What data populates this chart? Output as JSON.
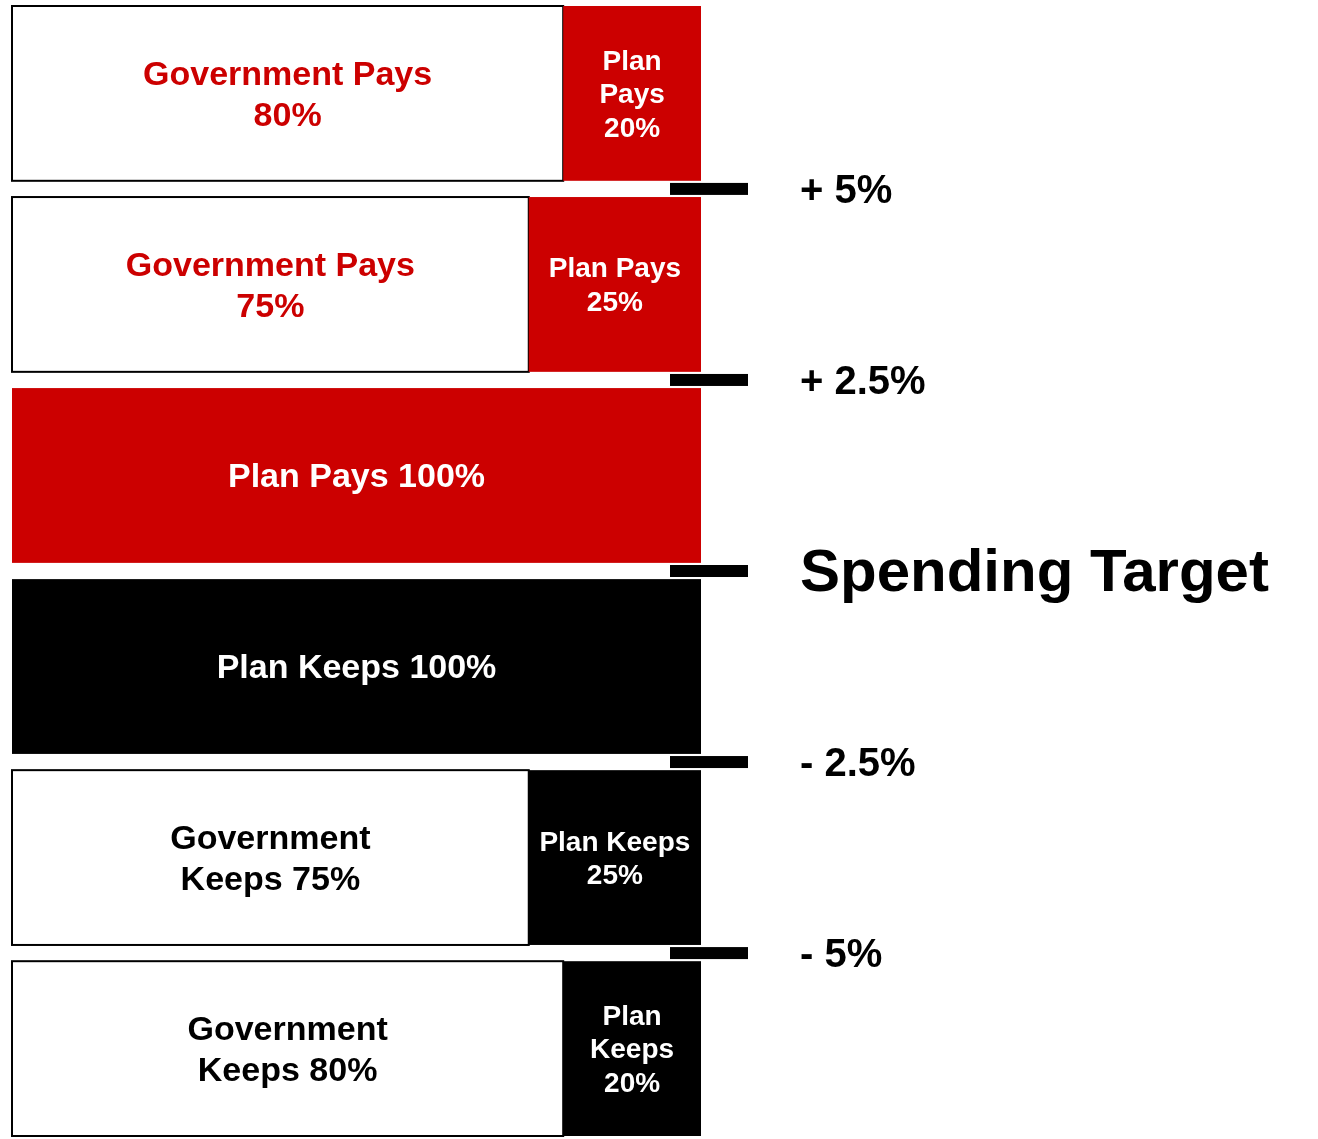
{
  "chart_data": {
    "type": "bar",
    "orientation": "horizontal",
    "stacked": true,
    "categories": [
      null,
      null,
      null,
      null,
      null,
      null
    ],
    "xlim": [
      0,
      100
    ],
    "tick_labels": false,
    "series": [
      {
        "color": "#ffffff",
        "values": [
          80,
          75,
          0,
          0,
          75,
          80
        ],
        "value_labels": [
          "Government Pays 80%",
          "Government Pays 75%",
          null,
          null,
          "Government Keeps 75%",
          "Government Keeps 80%"
        ]
      },
      {
        "colors": [
          "#cc0000",
          "#cc0000",
          "#cc0000",
          "#000000",
          "#000000",
          "#000000"
        ],
        "values": [
          20,
          25,
          100,
          100,
          25,
          20
        ],
        "value_labels": [
          "Plan Pays 20%",
          "Plan Pays 25%",
          "Plan Pays 100%",
          "Plan Keeps 100%",
          "Plan Keeps 25%",
          "Plan Keeps 20%"
        ]
      }
    ],
    "annotations": [
      "+ 5%",
      "+ 2.5%",
      "Spending Target",
      "- 2.5%",
      "- 5%"
    ]
  }
}
